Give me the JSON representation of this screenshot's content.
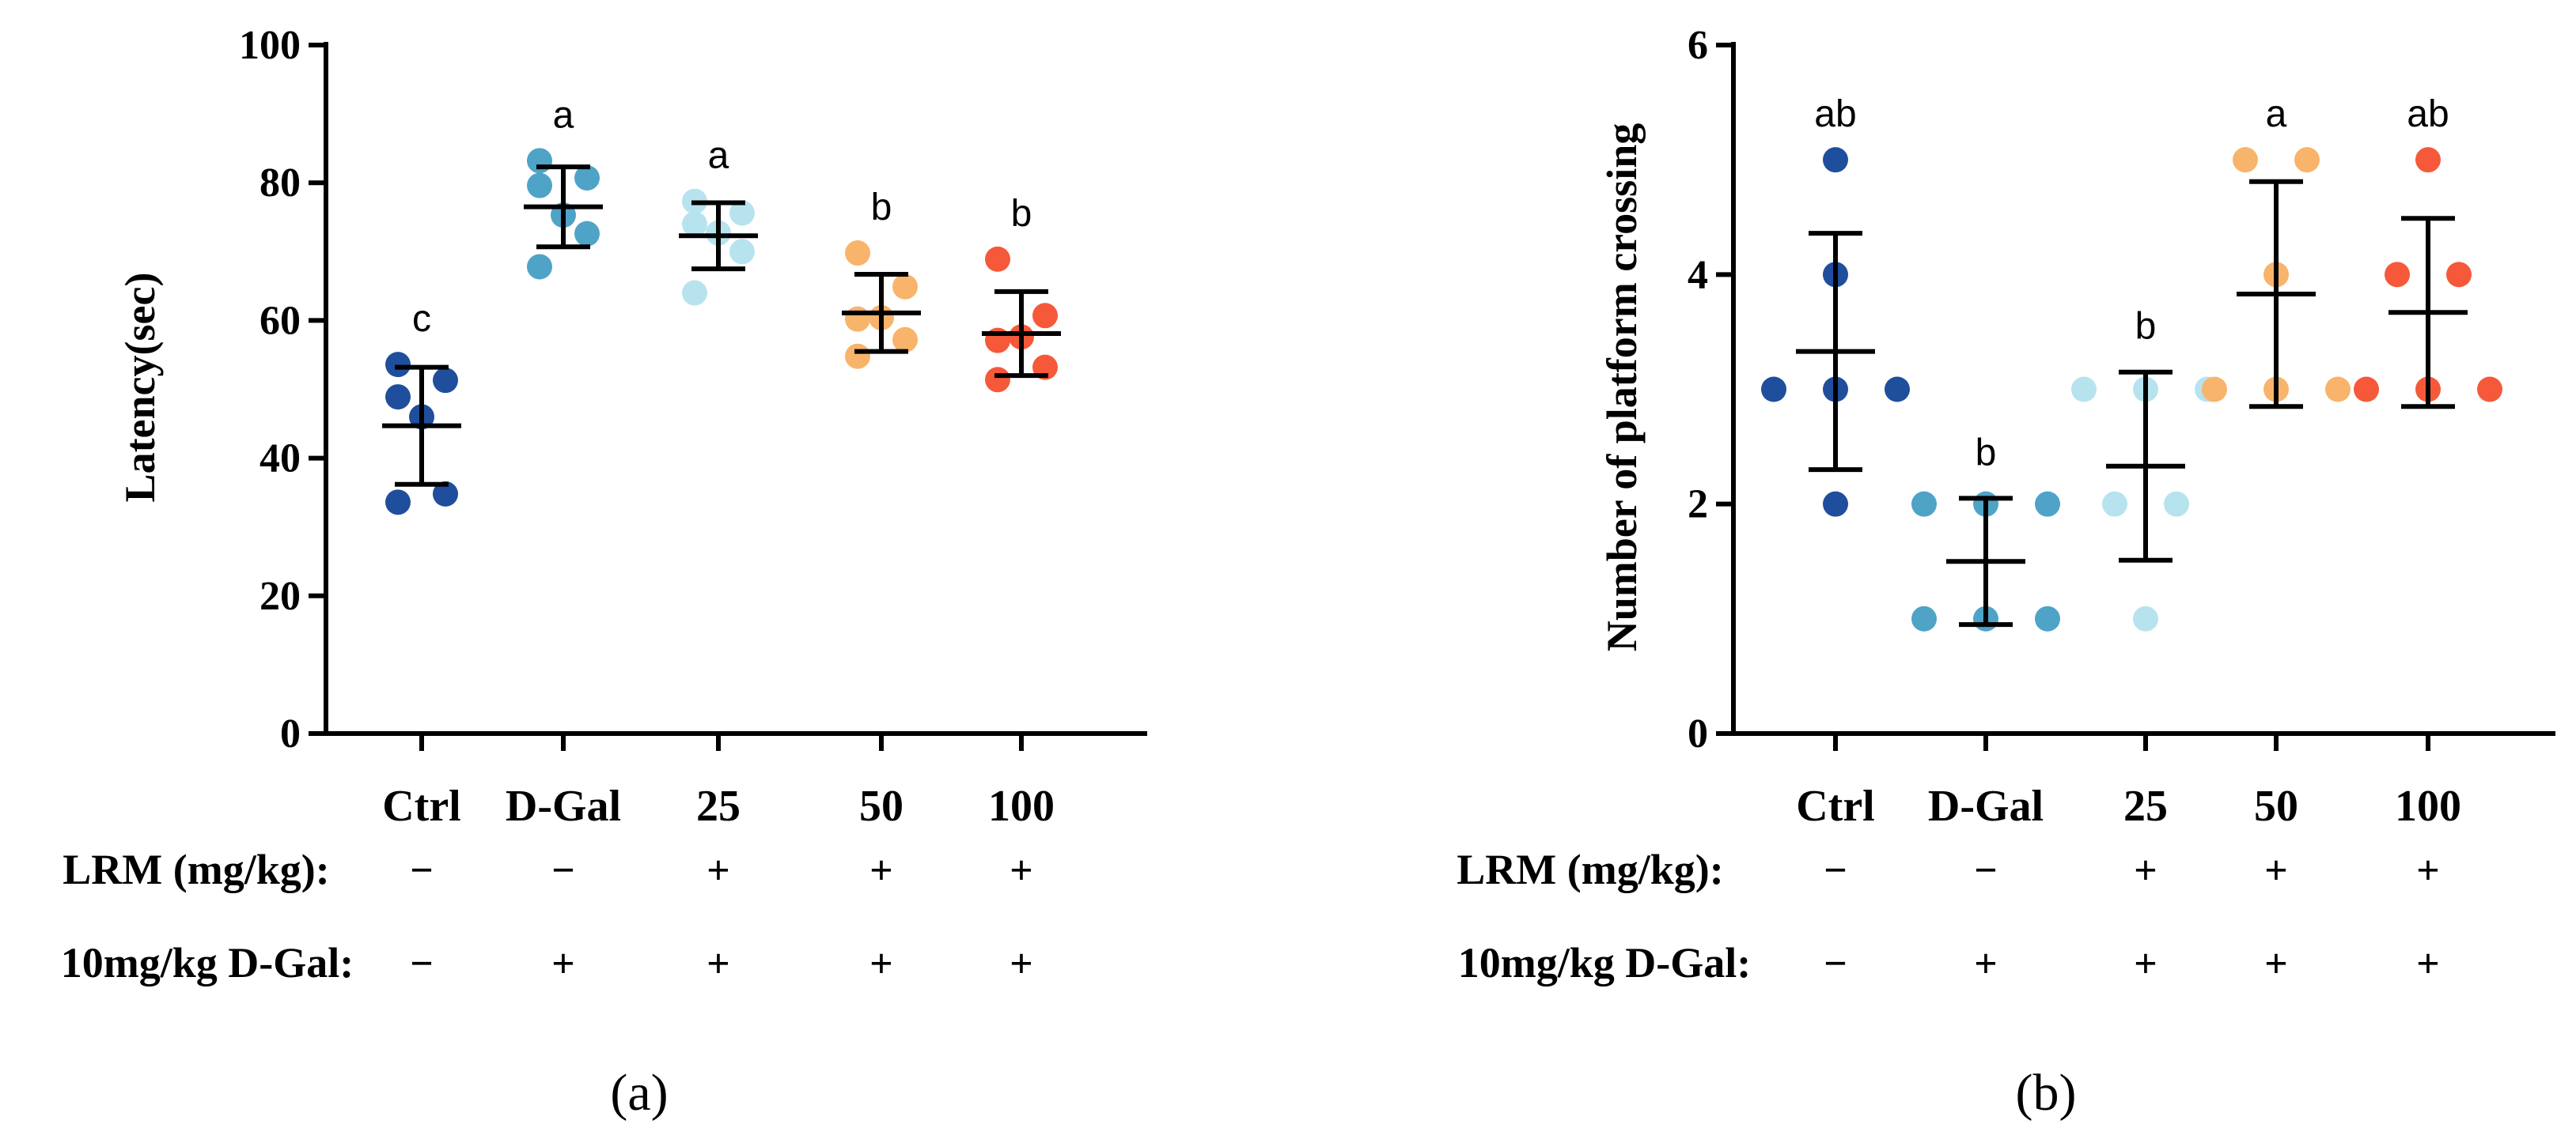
{
  "chart_data": [
    {
      "type": "scatter",
      "panel_label": "(a)",
      "ylabel": "Latency(sec)",
      "ylim": [
        0,
        100
      ],
      "yticks": [
        0,
        20,
        40,
        60,
        80,
        100
      ],
      "ytick_labels": [
        "0",
        "20",
        "40",
        "60",
        "80",
        "100"
      ],
      "categories": [
        "Ctrl",
        "D-Gal",
        "25",
        "50",
        "100"
      ],
      "row1_label": "LRM (mg/kg):",
      "row1_signs": [
        "−",
        "−",
        "+",
        "+",
        "+"
      ],
      "row2_label": "10mg/kg D-Gal:",
      "row2_signs": [
        "−",
        "+",
        "+",
        "+",
        "+"
      ],
      "significance": [
        "c",
        "a",
        "a",
        "b",
        "b"
      ],
      "colors": [
        "#1f4e9c",
        "#4fa3c7",
        "#b7e3ef",
        "#f8b46b",
        "#f5593a"
      ],
      "groups": [
        {
          "name": "Ctrl",
          "points": [
            33.6,
            34.8,
            46.0,
            48.9,
            51.3,
            53.6
          ],
          "mean": 44.7,
          "sd": 8.5
        },
        {
          "name": "D-Gal",
          "points": [
            67.8,
            72.6,
            75.3,
            79.6,
            80.7,
            83.2
          ],
          "mean": 76.5,
          "sd": 5.8
        },
        {
          "name": "25",
          "points": [
            64.0,
            70.0,
            72.7,
            74.0,
            75.6,
            77.3
          ],
          "mean": 72.3,
          "sd": 4.8
        },
        {
          "name": "50",
          "points": [
            54.8,
            57.2,
            60.4,
            60.2,
            64.9,
            69.8
          ],
          "mean": 61.1,
          "sd": 5.6
        },
        {
          "name": "100",
          "points": [
            51.4,
            53.2,
            57.6,
            57.1,
            60.7,
            68.9
          ],
          "mean": 58.1,
          "sd": 6.1
        }
      ]
    },
    {
      "type": "scatter",
      "panel_label": "(b)",
      "ylabel": "Number of platform crossing",
      "ylim": [
        0,
        6
      ],
      "yticks": [
        0,
        2,
        4,
        6
      ],
      "ytick_labels": [
        "0",
        "2",
        "4",
        "6"
      ],
      "categories": [
        "Ctrl",
        "D-Gal",
        "25",
        "50",
        "100"
      ],
      "row1_label": "LRM (mg/kg):",
      "row1_signs": [
        "−",
        "−",
        "+",
        "+",
        "+"
      ],
      "row2_label": "10mg/kg D-Gal:",
      "row2_signs": [
        "−",
        "+",
        "+",
        "+",
        "+"
      ],
      "significance": [
        "ab",
        "b",
        "b",
        "a",
        "ab"
      ],
      "colors": [
        "#1f4e9c",
        "#4fa3c7",
        "#b7e3ef",
        "#f8b46b",
        "#f5593a"
      ],
      "groups": [
        {
          "name": "Ctrl",
          "points": [
            2,
            3,
            3,
            3,
            4,
            5
          ],
          "mean": 3.33,
          "sd": 1.03
        },
        {
          "name": "D-Gal",
          "points": [
            1,
            1,
            1,
            2,
            2,
            2
          ],
          "mean": 1.5,
          "sd": 0.55
        },
        {
          "name": "25",
          "points": [
            1,
            2,
            2,
            3,
            3,
            3
          ],
          "mean": 2.33,
          "sd": 0.82
        },
        {
          "name": "50",
          "points": [
            3,
            3,
            3,
            4,
            5,
            5
          ],
          "mean": 3.83,
          "sd": 0.98
        },
        {
          "name": "100",
          "points": [
            3,
            3,
            3,
            4,
            4,
            5
          ],
          "mean": 3.67,
          "sd": 0.82
        }
      ]
    }
  ]
}
